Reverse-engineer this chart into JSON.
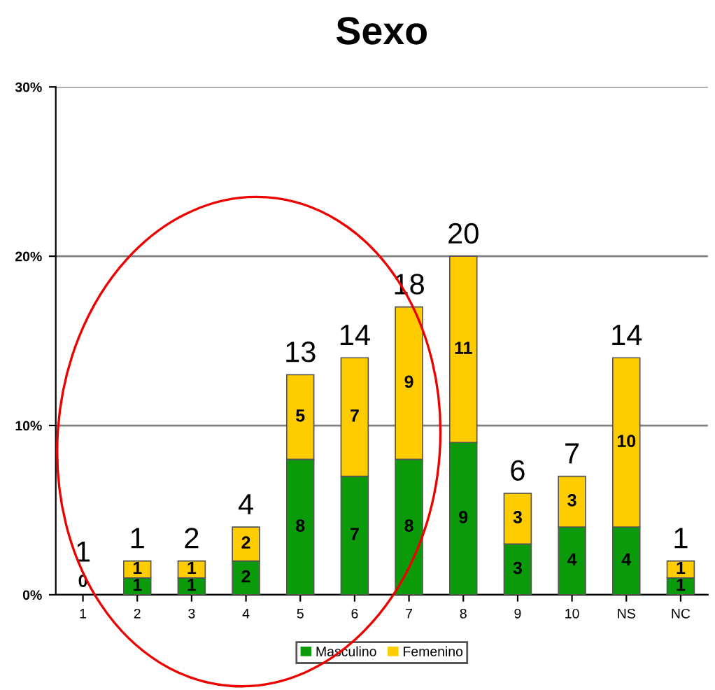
{
  "chart_data": {
    "type": "bar",
    "title": "Sexo",
    "stacked": true,
    "categories": [
      "1",
      "2",
      "3",
      "4",
      "5",
      "6",
      "7",
      "8",
      "9",
      "10",
      "NS",
      "NC"
    ],
    "series": [
      {
        "name": "Masculino",
        "color": "#0a9a0a",
        "values": [
          0,
          1,
          1,
          2,
          8,
          7,
          8,
          9,
          3,
          4,
          4,
          1
        ],
        "value_labels": [
          "0",
          "1",
          "1",
          "2",
          "8",
          "7",
          "8",
          "9",
          "3",
          "4",
          "4",
          "1"
        ]
      },
      {
        "name": "Femenino",
        "color": "#ffcc00",
        "values": [
          0,
          1,
          1,
          2,
          5,
          7,
          9,
          11,
          3,
          3,
          10,
          1
        ],
        "value_labels": [
          null,
          "1",
          "1",
          "2",
          "5",
          "7",
          "9",
          "11",
          "3",
          "3",
          "10",
          "1"
        ]
      }
    ],
    "totals": [
      "1",
      "1",
      "2",
      "4",
      "13",
      "14",
      "18",
      "20",
      "6",
      "7",
      "14",
      "1"
    ],
    "ylim": [
      0,
      30
    ],
    "yticks": [
      {
        "value": 0,
        "label": "0%"
      },
      {
        "value": 10,
        "label": "10%"
      },
      {
        "value": 20,
        "label": "20%"
      },
      {
        "value": 30,
        "label": "30%"
      }
    ],
    "grid": "y",
    "legend": "bottom"
  }
}
